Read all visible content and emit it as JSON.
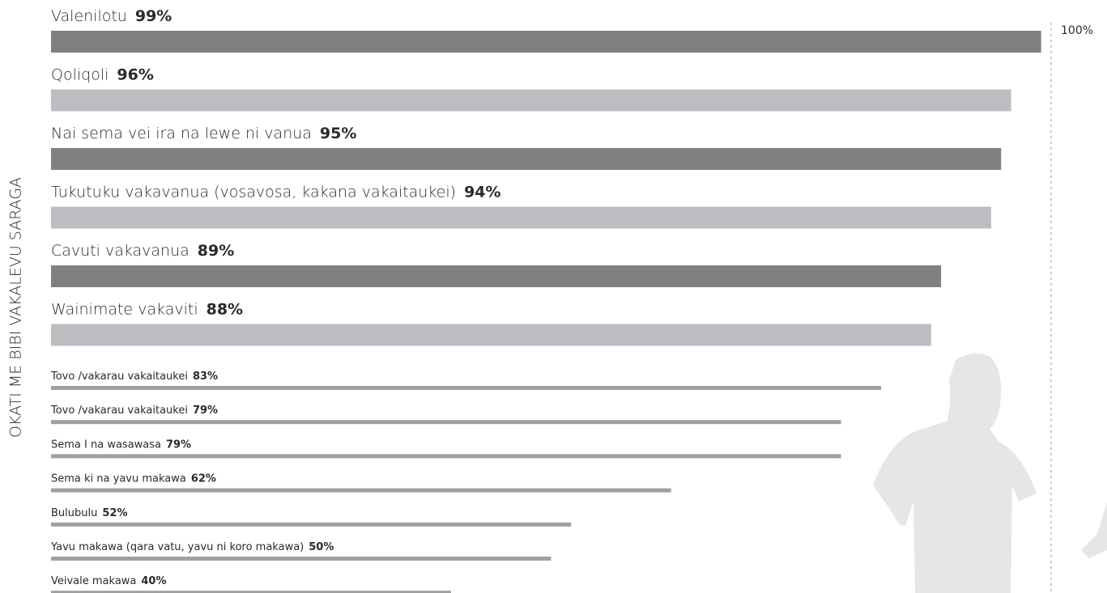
{
  "chart_data": {
    "type": "bar",
    "y_label": "OKATI ME BIBI VAKALEVU SARAGA",
    "categories": [
      "Valenilotu",
      "Qoliqoli",
      "Nai sema vei ira na lewe ni vanua",
      "Tukutuku vakavanua (vosavosa, kakana vakaitaukei)",
      "Cavuti vakavanua",
      "Wainimate vakaviti",
      "Tovo /vakarau vakaitaukei",
      "Tovo /vakarau vakaitaukei",
      "Sema I na wasawasa",
      "Sema ki na yavu makawa",
      "Bulubulu",
      "Yavu makawa (qara vatu, yavu ni koro makawa)",
      "Veivale makawa"
    ],
    "values": [
      99,
      96,
      95,
      94,
      89,
      88,
      83,
      79,
      79,
      62,
      52,
      50,
      40
    ],
    "value_labels": [
      "99%",
      "96%",
      "95%",
      "94%",
      "89%",
      "88%",
      "83%",
      "79%",
      "79%",
      "62%",
      "52%",
      "50%",
      "40%"
    ],
    "colors": [
      "#808083",
      "#bcbdc0",
      "#808083",
      "#bcbdc0",
      "#808083",
      "#bcbdc0",
      "#a0a0a2",
      "#a0a0a2",
      "#a0a0a2",
      "#a0a0a2",
      "#a0a0a2",
      "#a0a0a2",
      "#a0a0a2"
    ],
    "xlim": [
      0,
      100
    ],
    "xticks": [
      {
        "value": 100,
        "label": "100%"
      }
    ]
  }
}
